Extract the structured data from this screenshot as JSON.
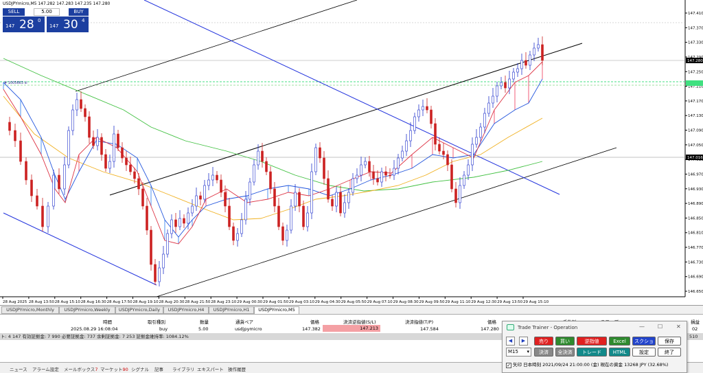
{
  "chart": {
    "symbol_title": "USDJPYmicro,M5  147.282 147.283 147.235 147.280",
    "object_label": "# 1005663 sl",
    "price_levels": [
      "147.410",
      "147.370",
      "147.330",
      "147.290",
      "147.250",
      "147.210",
      "147.170",
      "147.130",
      "147.090",
      "147.050",
      "147.010",
      "146.970",
      "146.930",
      "146.890",
      "146.850",
      "146.810",
      "146.770",
      "146.730",
      "146.690",
      "146.650"
    ],
    "highlighted_prices": {
      "current": "147.280",
      "line": "147.016"
    },
    "time_labels": [
      "28 Aug 2025",
      "28 Aug 13:50",
      "28 Aug 15:10",
      "28 Aug 16:30",
      "28 Aug 17:50",
      "28 Aug 19:10",
      "28 Aug 20:30",
      "28 Aug 21:50",
      "28 Aug 23:10",
      "29 Aug 00:30",
      "29 Aug 01:50",
      "29 Aug 03:10",
      "29 Aug 04:30",
      "29 Aug 05:50",
      "29 Aug 07:10",
      "29 Aug 08:30",
      "29 Aug 09:50",
      "29 Aug 11:10",
      "29 Aug 12:30",
      "29 Aug 13:50",
      "29 Aug 15:10"
    ]
  },
  "trade_panel": {
    "sell_label": "SELL",
    "buy_label": "BUY",
    "volume": "5.00",
    "bid_small": "147",
    "bid_big": "28",
    "bid_sup": "0",
    "ask_small": "147",
    "ask_big": "30",
    "ask_sup": "4"
  },
  "tabs": [
    {
      "label": "USDJPYmicro,Monthly"
    },
    {
      "label": "USDJPYmicro,Weekly"
    },
    {
      "label": "USDJPYmicro,Daily"
    },
    {
      "label": "USDJPYmicro,H4"
    },
    {
      "label": "USDJPYmicro,H1"
    },
    {
      "label": "USDJPYmicro,M5"
    }
  ],
  "orders": {
    "headers": {
      "time": "時間",
      "type": "取引種別",
      "volume": "数量",
      "symbol": "通貨ペア",
      "price": "価格",
      "sl": "決済逆指値(S/L)",
      "tp": "決済指値(T/P)",
      "cur_price": "価格",
      "fee": "手数料",
      "swap": "スワップ",
      "profit": "損益"
    },
    "row": {
      "time": "2025.08.29 16:08:04",
      "type": "buy",
      "volume": "5.00",
      "symbol": "usdjpymicro",
      "price": "147.382",
      "sl": "147.213",
      "tp": "147.584",
      "cur_price": "147.280",
      "profit_tail": "02"
    }
  },
  "balance_text": "ト: 4 147  有効証拠金: 7 990  必要証拠金: 737  余剰証拠金: 7 253  証拠金維持率: 1084.12%",
  "balance_right": "510",
  "bottom_tabs": [
    {
      "label": "ニュース",
      "count": ""
    },
    {
      "label": "アラーム設定",
      "count": ""
    },
    {
      "label": "メールボックス",
      "count": "7"
    },
    {
      "label": "マーケット",
      "count": "90"
    },
    {
      "label": "シグナル",
      "count": ""
    },
    {
      "label": "記事",
      "count": ""
    },
    {
      "label": "ライブラリ",
      "count": ""
    },
    {
      "label": "エキスパート",
      "count": ""
    },
    {
      "label": "操作履歴",
      "count": ""
    }
  ],
  "trainer": {
    "title": "Trade Trainer - Operation",
    "btn_sell": "売り",
    "btn_buy": "買い",
    "btn_limit": "逆指値",
    "btn_excel": "Excel",
    "btn_screenshot": "スクショ",
    "btn_save": "保存",
    "btn_close_pos": "決済",
    "btn_close_all": "全決済",
    "btn_trade": "トレード",
    "btn_html": "HTML",
    "btn_settings": "設定",
    "btn_exit": "終了",
    "timeframe": "M15",
    "status": "矢印  日本時刻 2021/09/24 21:00:00 (金)   現在の資金 13268 JPY (32.68%)",
    "colors": {
      "sell": "#e02020",
      "buy": "#2e8a2e",
      "limit": "#e02020",
      "excel": "#2e8a2e",
      "screenshot": "#2244cc",
      "gray": "#888888",
      "teal": "#128a8a"
    }
  }
}
